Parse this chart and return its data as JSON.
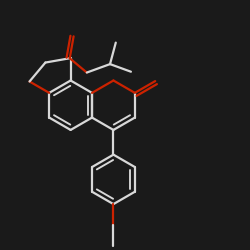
{
  "bg_color": "#1a1a1a",
  "bond_color": "#d8d8d8",
  "oxygen_color": "#cc2200",
  "lw": 1.6,
  "figsize": [
    2.5,
    2.5
  ],
  "dpi": 100
}
